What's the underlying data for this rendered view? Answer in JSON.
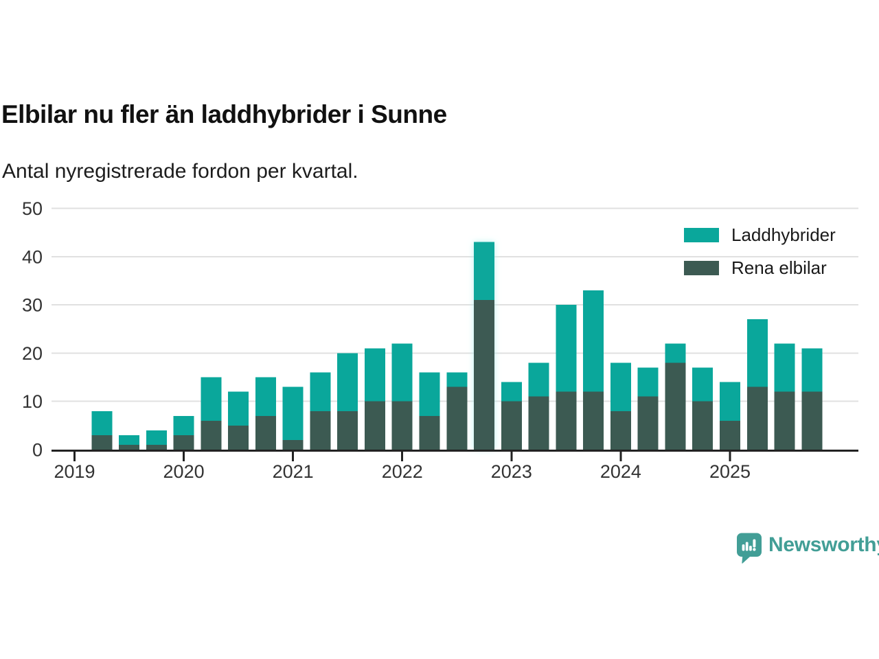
{
  "title": "Elbilar nu fler än laddhybrider i Sunne",
  "subtitle": "Antal nyregistrerade fordon per kvartal.",
  "legend": {
    "items": [
      {
        "label": "Laddhybrider",
        "color": "#0aa79b"
      },
      {
        "label": "Rena elbilar",
        "color": "#3c5a52"
      }
    ]
  },
  "branding": {
    "name": "Newsworthy",
    "color": "#429e96"
  },
  "colors": {
    "background": "#ffffff",
    "grid": "#e0e0e0",
    "axis": "#222222",
    "tick_label": "#333333",
    "highlight_glow": "#b6f3f0"
  },
  "chart_data": {
    "type": "bar",
    "stacked": true,
    "title": "Elbilar nu fler än laddhybrider i Sunne",
    "subtitle": "Antal nyregistrerade fordon per kvartal.",
    "xlabel": "",
    "ylabel": "",
    "grid": true,
    "legend_position": "top-right",
    "ylim": [
      0,
      50
    ],
    "yticks": [
      0,
      10,
      20,
      30,
      40,
      50
    ],
    "xticks": [
      "2019",
      "2020",
      "2021",
      "2022",
      "2023",
      "2024",
      "2025"
    ],
    "categories": [
      "2019 Q1",
      "2019 Q2",
      "2019 Q3",
      "2019 Q4",
      "2020 Q1",
      "2020 Q2",
      "2020 Q3",
      "2020 Q4",
      "2021 Q1",
      "2021 Q2",
      "2021 Q3",
      "2021 Q4",
      "2022 Q1",
      "2022 Q2",
      "2022 Q3",
      "2022 Q4",
      "2023 Q1",
      "2023 Q2",
      "2023 Q3",
      "2023 Q4",
      "2024 Q1",
      "2024 Q2",
      "2024 Q3",
      "2024 Q4",
      "2025 Q1",
      "2025 Q2",
      "2025 Q3"
    ],
    "series": [
      {
        "name": "Rena elbilar",
        "color": "#3c5a52",
        "values": [
          3,
          1,
          1,
          3,
          6,
          5,
          7,
          2,
          8,
          8,
          10,
          10,
          7,
          13,
          31,
          10,
          11,
          12,
          12,
          8,
          11,
          18,
          10,
          6,
          13,
          12,
          12
        ]
      },
      {
        "name": "Laddhybrider",
        "color": "#0aa79b",
        "values": [
          5,
          2,
          3,
          4,
          9,
          7,
          8,
          11,
          8,
          12,
          11,
          12,
          9,
          3,
          12,
          4,
          7,
          18,
          21,
          10,
          6,
          4,
          7,
          8,
          14,
          10,
          9
        ]
      }
    ],
    "totals": [
      8,
      3,
      4,
      7,
      15,
      12,
      15,
      13,
      16,
      20,
      21,
      22,
      16,
      16,
      43,
      14,
      18,
      30,
      33,
      18,
      17,
      22,
      17,
      14,
      27,
      22,
      21
    ],
    "highlighted_bar": "2022 Q3"
  }
}
